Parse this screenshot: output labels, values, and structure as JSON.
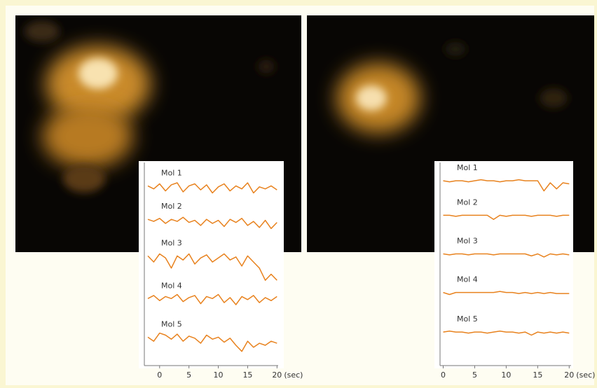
{
  "chart_data": [
    {
      "type": "line",
      "color": "#e8821e",
      "x": [
        -2,
        -1,
        0,
        1,
        2,
        3,
        4,
        5,
        6,
        7,
        8,
        9,
        10,
        11,
        12,
        13,
        14,
        15,
        16,
        17,
        18,
        19,
        20
      ],
      "xlim": [
        -2.6,
        20.2
      ],
      "xticks": [
        0,
        5,
        10,
        15,
        20
      ],
      "xlabel": "(sec)",
      "ylim": [
        0,
        10
      ],
      "series": [
        {
          "name": "Mol 1",
          "values": [
            8.85,
            8.7,
            8.95,
            8.6,
            8.9,
            9.0,
            8.55,
            8.85,
            8.95,
            8.65,
            8.9,
            8.5,
            8.8,
            8.95,
            8.6,
            8.85,
            8.7,
            9.0,
            8.5,
            8.8,
            8.7,
            8.85,
            8.65
          ]
        },
        {
          "name": "Mol 2",
          "values": [
            7.2,
            7.1,
            7.25,
            7.0,
            7.2,
            7.1,
            7.3,
            7.05,
            7.15,
            6.9,
            7.2,
            7.0,
            7.15,
            6.85,
            7.2,
            7.05,
            7.25,
            6.9,
            7.1,
            6.8,
            7.15,
            6.75,
            7.05
          ]
        },
        {
          "name": "Mol 3",
          "values": [
            5.4,
            5.1,
            5.5,
            5.3,
            4.8,
            5.4,
            5.2,
            5.5,
            5.0,
            5.3,
            5.45,
            5.1,
            5.3,
            5.5,
            5.2,
            5.35,
            4.9,
            5.4,
            5.1,
            4.8,
            4.2,
            4.5,
            4.2
          ]
        },
        {
          "name": "Mol 4",
          "values": [
            3.3,
            3.45,
            3.2,
            3.4,
            3.3,
            3.5,
            3.15,
            3.35,
            3.45,
            3.05,
            3.4,
            3.3,
            3.5,
            3.1,
            3.35,
            3.0,
            3.4,
            3.25,
            3.45,
            3.1,
            3.35,
            3.2,
            3.4
          ]
        },
        {
          "name": "Mol 5",
          "values": [
            1.4,
            1.2,
            1.6,
            1.5,
            1.3,
            1.55,
            1.2,
            1.45,
            1.35,
            1.1,
            1.5,
            1.3,
            1.4,
            1.15,
            1.35,
            1.0,
            0.7,
            1.2,
            0.9,
            1.1,
            1.0,
            1.2,
            1.1
          ]
        }
      ]
    },
    {
      "type": "line",
      "color": "#e8821e",
      "x": [
        0,
        1,
        2,
        3,
        4,
        5,
        6,
        7,
        8,
        9,
        10,
        11,
        12,
        13,
        14,
        15,
        16,
        17,
        18,
        19,
        20
      ],
      "xlim": [
        -0.5,
        20.3
      ],
      "xticks": [
        0,
        5,
        10,
        15,
        20
      ],
      "xlabel": "(sec)",
      "ylim": [
        0,
        10
      ],
      "series": [
        {
          "name": "Mol 1",
          "values": [
            9.1,
            9.05,
            9.1,
            9.1,
            9.05,
            9.1,
            9.15,
            9.1,
            9.1,
            9.05,
            9.1,
            9.1,
            9.15,
            9.1,
            9.1,
            9.1,
            8.6,
            9.0,
            8.7,
            9.0,
            8.95
          ]
        },
        {
          "name": "Mol 2",
          "values": [
            7.4,
            7.4,
            7.35,
            7.4,
            7.4,
            7.4,
            7.4,
            7.4,
            7.2,
            7.4,
            7.35,
            7.4,
            7.4,
            7.4,
            7.35,
            7.4,
            7.4,
            7.4,
            7.35,
            7.4,
            7.4
          ]
        },
        {
          "name": "Mol 3",
          "values": [
            5.5,
            5.45,
            5.5,
            5.5,
            5.45,
            5.5,
            5.5,
            5.5,
            5.45,
            5.5,
            5.5,
            5.5,
            5.5,
            5.5,
            5.4,
            5.5,
            5.35,
            5.5,
            5.45,
            5.5,
            5.45
          ]
        },
        {
          "name": "Mol 4",
          "values": [
            3.6,
            3.5,
            3.6,
            3.6,
            3.6,
            3.6,
            3.6,
            3.6,
            3.6,
            3.65,
            3.6,
            3.6,
            3.55,
            3.6,
            3.55,
            3.6,
            3.55,
            3.6,
            3.55,
            3.55,
            3.55
          ]
        },
        {
          "name": "Mol 5",
          "values": [
            1.65,
            1.7,
            1.65,
            1.65,
            1.6,
            1.65,
            1.65,
            1.6,
            1.65,
            1.7,
            1.65,
            1.65,
            1.6,
            1.65,
            1.5,
            1.65,
            1.6,
            1.65,
            1.6,
            1.65,
            1.6
          ]
        }
      ]
    }
  ]
}
